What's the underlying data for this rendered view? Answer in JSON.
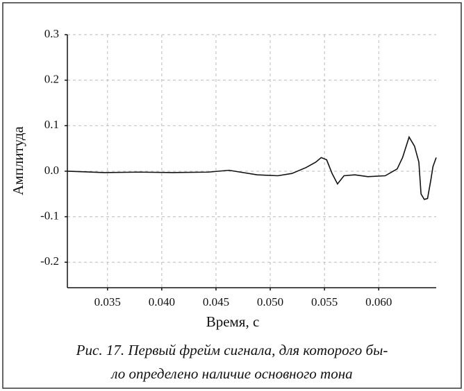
{
  "chart_data": {
    "type": "line",
    "ylabel": "Амплитуда",
    "xlabel": "Время, с",
    "caption": [
      "Рис. 17. Первый фрейм сигнала, для которого бы-",
      "ло определено наличие основного тона"
    ],
    "x": [
      0.0313,
      0.0347,
      0.0379,
      0.0411,
      0.0443,
      0.0462,
      0.0488,
      0.0507,
      0.052,
      0.0533,
      0.0542,
      0.0547,
      0.0552,
      0.0557,
      0.0562,
      0.0568,
      0.0578,
      0.059,
      0.0606,
      0.0617,
      0.0622,
      0.0628,
      0.0633,
      0.0637,
      0.0639,
      0.0642,
      0.0645,
      0.0648,
      0.065,
      0.0653
    ],
    "series": [
      {
        "color": "#111111",
        "values": [
          0,
          -0.003,
          -0.002,
          -0.003,
          -0.002,
          0.002,
          -0.008,
          -0.01,
          -0.005,
          0.008,
          0.02,
          0.03,
          0.025,
          -0.005,
          -0.028,
          -0.01,
          -0.008,
          -0.012,
          -0.01,
          0.005,
          0.03,
          0.075,
          0.055,
          0.02,
          -0.05,
          -0.062,
          -0.06,
          -0.02,
          0.01,
          0.03
        ]
      }
    ],
    "xlim": [
      0.0313,
      0.0653
    ],
    "xticks": [
      0.035,
      {
        "value": 0.04,
        "label": "0.040"
      },
      0.045,
      {
        "value": 0.05,
        "label": "0.050"
      },
      0.055,
      {
        "value": 0.06,
        "label": "0.060"
      }
    ],
    "ylim": [
      -0.256,
      0.3
    ],
    "yticks": [
      0.3,
      0.2,
      0.1,
      {
        "value": 0,
        "label": "0.0"
      },
      -0.1,
      -0.2
    ],
    "grid": true
  }
}
